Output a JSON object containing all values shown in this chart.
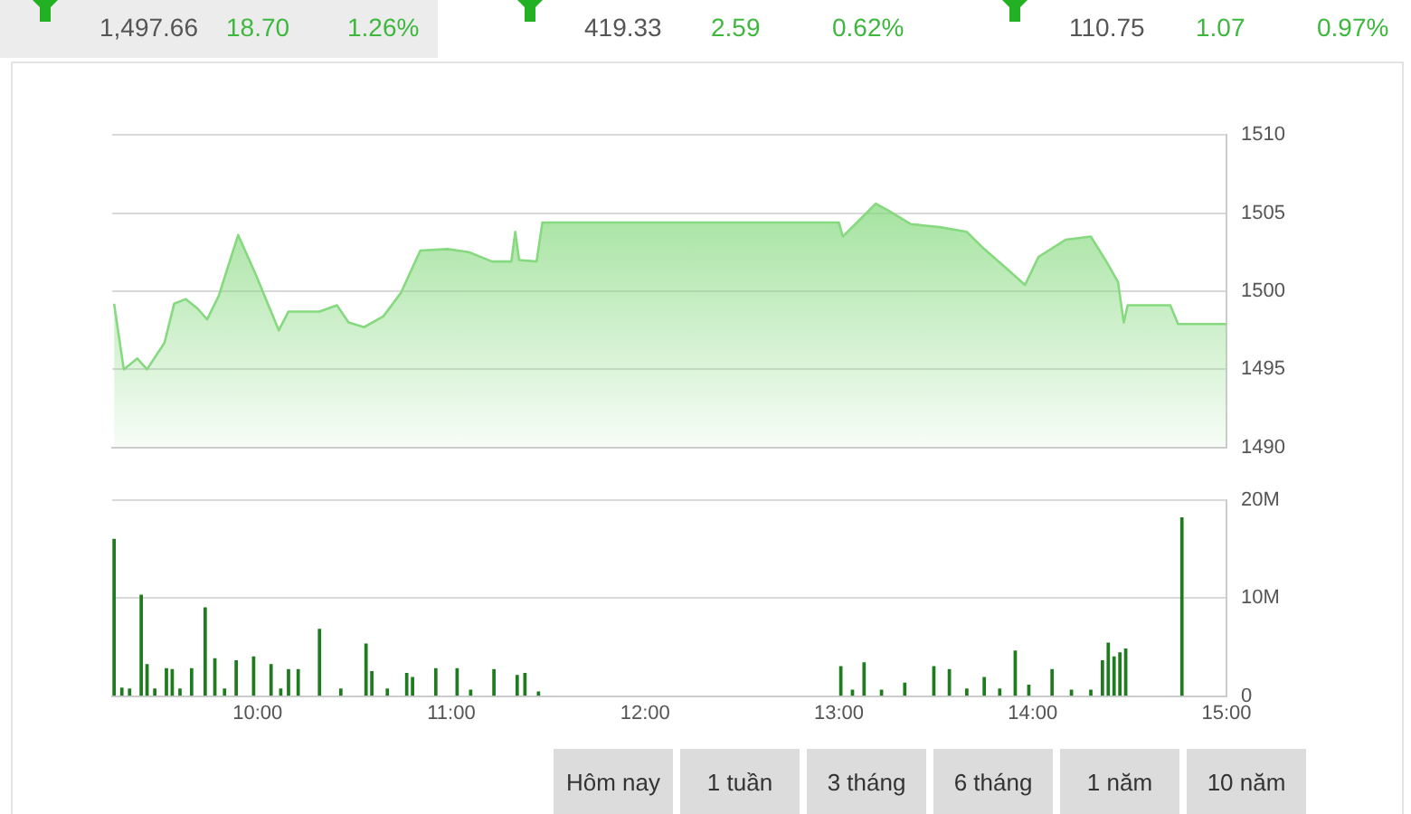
{
  "chart_data": [
    {
      "type": "area",
      "annotations": [
        "1,497.66",
        "18.70",
        "1.26%",
        "419.33",
        "2.59",
        "0.62%",
        "110.75",
        "1.07",
        "0.97%"
      ],
      "x": [
        9.26,
        9.31,
        9.38,
        9.43,
        9.52,
        9.57,
        9.63,
        9.69,
        9.74,
        9.8,
        9.9,
        9.99,
        10.08,
        10.11,
        10.16,
        10.32,
        10.41,
        10.47,
        10.55,
        10.65,
        10.74,
        10.84,
        10.98,
        11.09,
        11.21,
        11.31,
        11.33,
        11.35,
        11.44,
        11.47,
        11.5,
        13.0,
        13.02,
        13.11,
        13.19,
        13.25,
        13.37,
        13.52,
        13.66,
        13.75,
        13.87,
        13.96,
        14.03,
        14.17,
        14.3,
        14.38,
        14.44,
        14.47,
        14.49,
        14.71,
        14.75,
        15.0
      ],
      "series": [
        {
          "color": "#86d97f",
          "values": [
            1499.2,
            1495.0,
            1495.7,
            1495.0,
            1496.7,
            1499.2,
            1499.5,
            1498.9,
            1498.2,
            1499.7,
            1503.6,
            1501.1,
            1498.4,
            1497.5,
            1498.7,
            1498.7,
            1499.1,
            1498.0,
            1497.7,
            1498.4,
            1499.9,
            1502.6,
            1502.7,
            1502.5,
            1501.9,
            1501.9,
            1503.8,
            1502.0,
            1501.9,
            1504.4,
            1504.4,
            1504.4,
            1503.5,
            1504.6,
            1505.6,
            1505.2,
            1504.3,
            1504.1,
            1503.8,
            1502.7,
            1501.4,
            1500.4,
            1502.2,
            1503.3,
            1503.5,
            1501.9,
            1500.6,
            1498.0,
            1499.1,
            1499.1,
            1497.9,
            1497.9
          ]
        }
      ],
      "xlim": [
        9.25,
        15
      ],
      "ylim": [
        1490,
        1510
      ],
      "yticks": [
        1490,
        1495,
        1500,
        1505,
        1510
      ],
      "grid": "y",
      "tick_labels": "y",
      "legend": false,
      "marker": "none"
    },
    {
      "type": "bar",
      "annotations": [
        "Hôm nay",
        "1 tuần",
        "3 tháng",
        "6 tháng",
        "1 năm",
        "10 năm"
      ],
      "x": [
        9.26,
        9.3,
        9.34,
        9.4,
        9.43,
        9.47,
        9.53,
        9.56,
        9.6,
        9.66,
        9.73,
        9.78,
        9.83,
        9.89,
        9.98,
        10.07,
        10.12,
        10.16,
        10.21,
        10.32,
        10.43,
        10.56,
        10.59,
        10.67,
        10.77,
        10.8,
        10.92,
        11.03,
        11.1,
        11.22,
        11.34,
        11.38,
        11.45,
        13.01,
        13.07,
        13.13,
        13.22,
        13.34,
        13.49,
        13.57,
        13.66,
        13.75,
        13.83,
        13.91,
        13.98,
        14.1,
        14.2,
        14.3,
        14.36,
        14.39,
        14.42,
        14.45,
        14.48,
        14.77
      ],
      "series": [
        {
          "color": "#1e7b1e",
          "values": [
            16.0,
            0.8,
            0.7,
            10.3,
            3.2,
            0.7,
            2.8,
            2.7,
            0.7,
            2.8,
            9.0,
            3.8,
            0.7,
            3.6,
            4.0,
            3.2,
            0.7,
            2.7,
            2.7,
            6.8,
            0.7,
            5.3,
            2.5,
            0.7,
            2.3,
            1.9,
            2.8,
            2.8,
            0.6,
            2.7,
            2.1,
            2.3,
            0.4,
            3.0,
            0.6,
            3.4,
            0.6,
            1.3,
            3.0,
            2.7,
            0.7,
            1.9,
            0.7,
            4.6,
            1.1,
            2.7,
            0.6,
            0.6,
            3.6,
            5.4,
            4.0,
            4.4,
            4.8,
            18.2
          ]
        }
      ],
      "xlim": [
        9.25,
        15
      ],
      "xticks": [
        {
          "value": 10,
          "label": "10:00"
        },
        {
          "value": 11,
          "label": "11:00"
        },
        {
          "value": 12,
          "label": "12:00"
        },
        {
          "value": 13,
          "label": "13:00"
        },
        {
          "value": 14,
          "label": "14:00"
        },
        {
          "value": 15,
          "label": "15:00"
        }
      ],
      "ylim": [
        0,
        20
      ],
      "yticks": [
        {
          "value": 0,
          "label": "0"
        },
        {
          "value": 10,
          "label": "10M"
        },
        {
          "value": 20,
          "label": "20M"
        }
      ],
      "grid": "y",
      "legend": false
    }
  ]
}
